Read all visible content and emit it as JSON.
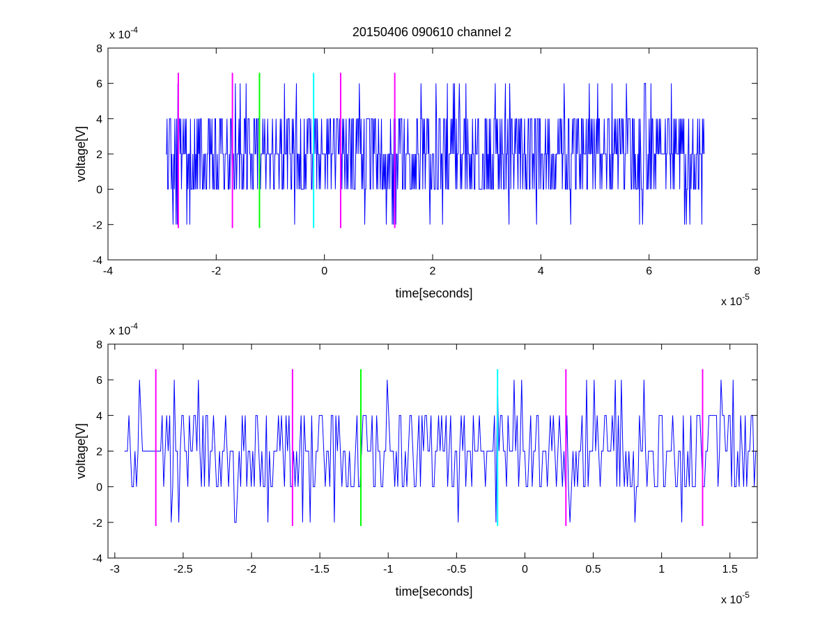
{
  "figure": {
    "title": "20150406 090610 channel 2",
    "background": "#ffffff"
  },
  "chart_data": [
    {
      "type": "line",
      "xlabel": "time[seconds]",
      "ylabel": "voltage[V]",
      "x_multiplier_label": "x 10",
      "x_multiplier_exp": "-5",
      "y_multiplier_label": "x 10",
      "y_multiplier_exp": "-4",
      "xlim": [
        -4,
        8
      ],
      "ylim": [
        -4,
        8
      ],
      "xticks": [
        -4,
        -2,
        0,
        2,
        4,
        6,
        8
      ],
      "xtick_labels": [
        "-4",
        "-2",
        "0",
        "2",
        "4",
        "6",
        "8"
      ],
      "yticks": [
        -4,
        -2,
        0,
        2,
        4,
        6,
        8
      ],
      "ytick_labels": [
        "-4",
        "-2",
        "0",
        "2",
        "4",
        "6",
        "8"
      ],
      "grid": false,
      "series": [
        {
          "color": "#0000ff",
          "x_range": [
            -2.93,
            7.02
          ],
          "levels": [
            -2,
            0,
            2,
            4,
            6
          ],
          "baseline": 2,
          "note_values": "quantized noise signal"
        }
      ],
      "markers": [
        {
          "x": -2.7,
          "y_range": [
            -2.2,
            6.6
          ],
          "color": "#ff00ff"
        },
        {
          "x": -1.7,
          "y_range": [
            -2.2,
            6.6
          ],
          "color": "#ff00ff"
        },
        {
          "x": -1.2,
          "y_range": [
            -2.2,
            6.6
          ],
          "color": "#00ff00"
        },
        {
          "x": -0.2,
          "y_range": [
            -2.2,
            6.6
          ],
          "color": "#00ffff"
        },
        {
          "x": 0.3,
          "y_range": [
            -2.2,
            6.6
          ],
          "color": "#ff00ff"
        },
        {
          "x": 1.3,
          "y_range": [
            -2.2,
            6.6
          ],
          "color": "#ff00ff"
        }
      ]
    },
    {
      "type": "line",
      "xlabel": "time[seconds]",
      "ylabel": "voltage[V]",
      "x_multiplier_label": "x 10",
      "x_multiplier_exp": "-5",
      "y_multiplier_label": "x 10",
      "y_multiplier_exp": "-4",
      "xlim": [
        -3.05,
        1.7
      ],
      "ylim": [
        -4,
        8
      ],
      "xticks": [
        -3,
        -2.5,
        -2,
        -1.5,
        -1,
        -0.5,
        0,
        0.5,
        1,
        1.5
      ],
      "xtick_labels": [
        "-3",
        "-2.5",
        "-2",
        "-1.5",
        "-1",
        "-0.5",
        "0",
        "0.5",
        "1",
        "1.5"
      ],
      "yticks": [
        -4,
        -2,
        0,
        2,
        4,
        6,
        8
      ],
      "ytick_labels": [
        "-4",
        "-2",
        "0",
        "2",
        "4",
        "6",
        "8"
      ],
      "grid": false,
      "series": [
        {
          "color": "#0000ff",
          "x_range": [
            -2.93,
            1.7
          ],
          "levels": [
            -2,
            0,
            2,
            4,
            6
          ],
          "baseline": 2
        }
      ],
      "markers": [
        {
          "x": -2.7,
          "y_range": [
            -2.2,
            6.6
          ],
          "color": "#ff00ff"
        },
        {
          "x": -1.7,
          "y_range": [
            -2.2,
            6.6
          ],
          "color": "#ff00ff"
        },
        {
          "x": -1.2,
          "y_range": [
            -2.2,
            6.6
          ],
          "color": "#00ff00"
        },
        {
          "x": -0.2,
          "y_range": [
            -2.2,
            6.6
          ],
          "color": "#00ffff"
        },
        {
          "x": 0.3,
          "y_range": [
            -2.2,
            6.6
          ],
          "color": "#ff00ff"
        },
        {
          "x": 1.3,
          "y_range": [
            -2.2,
            6.6
          ],
          "color": "#ff00ff"
        }
      ]
    }
  ]
}
